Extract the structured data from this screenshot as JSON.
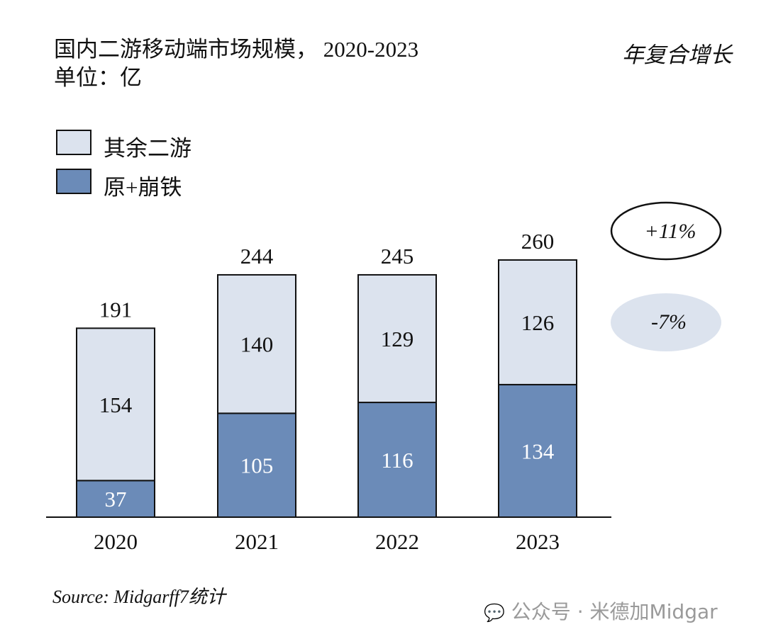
{
  "chart_data": {
    "type": "bar",
    "stacked": true,
    "title": "国内二游移动端市场规模， 2020-2023",
    "subtitle": "单位：亿",
    "categories": [
      "2020",
      "2021",
      "2022",
      "2023"
    ],
    "series": [
      {
        "name": "原+崩铁",
        "values": [
          37,
          105,
          116,
          134
        ],
        "color": "#6b8bb8"
      },
      {
        "name": "其余二游",
        "values": [
          154,
          140,
          129,
          126
        ],
        "color": "#dce3ee"
      }
    ],
    "totals": [
      191,
      244,
      245,
      260
    ],
    "legend_position": "top-left",
    "grid": false,
    "cagr": {
      "label": "年复合增长",
      "values": [
        {
          "series": "原+崩铁 total",
          "text": "+11%",
          "style": "outlined ellipse"
        },
        {
          "series": "其余二游",
          "text": "-7%",
          "style": "filled ellipse",
          "color": "#dce3ee"
        }
      ]
    },
    "source": "Source: Midgarff7统计"
  },
  "watermark": "公众号 · 米德加Midgar"
}
